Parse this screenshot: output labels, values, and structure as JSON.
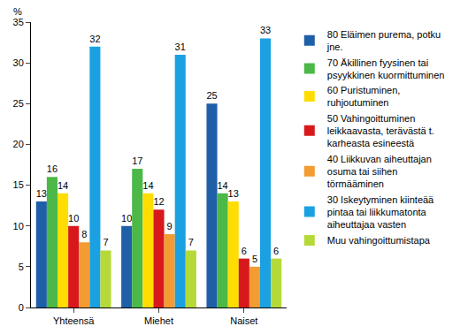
{
  "chart_data": {
    "type": "bar",
    "ylabel": "%",
    "categories": [
      "Yhteensä",
      "Miehet",
      "Naiset"
    ],
    "series": [
      {
        "name": "80 Eläimen purema, potku jne.",
        "color": "#1f5fa8",
        "values": [
          13,
          10,
          25
        ]
      },
      {
        "name": "70 Äkillinen fyysinen tai psyykkinen kuormittuminen",
        "color": "#4cb848",
        "values": [
          16,
          17,
          14
        ]
      },
      {
        "name": "60 Puristuminen, ruhjoutuminen",
        "color": "#ffdd00",
        "values": [
          14,
          14,
          13
        ]
      },
      {
        "name": "50 Vahingoittuminen leikkaavasta, terävästä t. karheasta esineestä",
        "color": "#d7191c",
        "values": [
          10,
          12,
          6
        ]
      },
      {
        "name": "40 Liikkuvan aiheuttajan osuma tai siihen törmääminen",
        "color": "#f39c32",
        "values": [
          8,
          9,
          5
        ]
      },
      {
        "name": "30 Iskeytyminen kiinteää pintaa tai liikkumatonta aiheuttajaa vasten",
        "color": "#1ba1e2",
        "values": [
          32,
          31,
          33
        ]
      },
      {
        "name": "Muu vahingoittumistapa",
        "color": "#b6d93a",
        "values": [
          7,
          7,
          6
        ]
      }
    ],
    "ylim": [
      0,
      35
    ],
    "yticks": [
      0,
      5,
      10,
      15,
      20,
      25,
      30,
      35
    ],
    "grid": false,
    "legend": "right",
    "data_labels": true
  }
}
